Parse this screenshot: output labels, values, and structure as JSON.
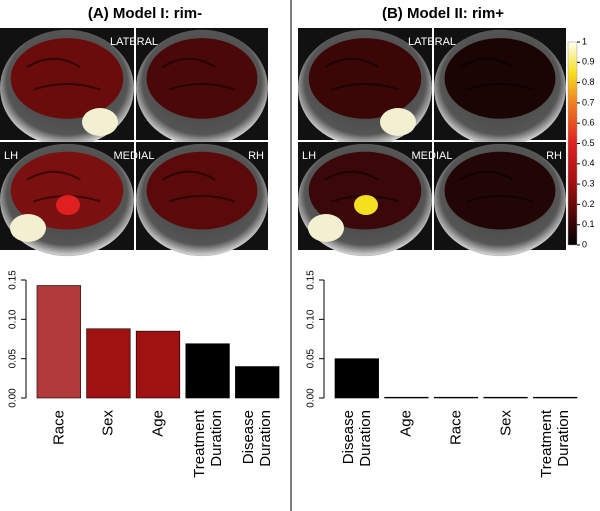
{
  "chart_data": [
    {
      "type": "bar",
      "title": "(A) Model I: rim-",
      "image_labels": {
        "lateral": "LATERAL",
        "medial": "MEDIAL",
        "lh": "LH",
        "rh": "RH"
      },
      "categories": [
        "Race",
        "Sex",
        "Age",
        "Treatment Duration",
        "Disease Duration"
      ],
      "values": [
        0.143,
        0.088,
        0.085,
        0.069,
        0.04
      ],
      "colors": [
        "#b23a3a",
        "#a01212",
        "#a01212",
        "#000000",
        "#000000"
      ],
      "ylim": [
        0,
        0.15
      ],
      "yticks": [
        {
          "value": 0,
          "label": "0.00"
        },
        {
          "value": 0.05,
          "label": "0.05"
        },
        {
          "value": 0.1,
          "label": "0.10"
        },
        {
          "value": 0.15,
          "label": "0.15"
        }
      ]
    },
    {
      "type": "bar",
      "title": "(B) Model II: rim+",
      "image_labels": {
        "lateral": "LATERAL",
        "medial": "MEDIAL",
        "lh": "LH",
        "rh": "RH"
      },
      "categories": [
        "Disease Duration",
        "Age",
        "Race",
        "Sex",
        "Treatment Duration"
      ],
      "values": [
        0.05,
        0.001,
        0.001,
        0.001,
        0.001
      ],
      "colors": [
        "#000000",
        "#000000",
        "#000000",
        "#000000",
        "#000000"
      ],
      "ylim": [
        0,
        0.15
      ],
      "yticks": [
        {
          "value": 0,
          "label": "0.00"
        },
        {
          "value": 0.05,
          "label": "0.05"
        },
        {
          "value": 0.1,
          "label": "0.10"
        },
        {
          "value": 0.15,
          "label": "0.15"
        }
      ],
      "colorbar": {
        "lim": [
          0,
          1
        ],
        "ticks": [
          0,
          0.1,
          0.2,
          0.3,
          0.4,
          0.5,
          0.6,
          0.7,
          0.8,
          0.9,
          1
        ]
      }
    }
  ]
}
